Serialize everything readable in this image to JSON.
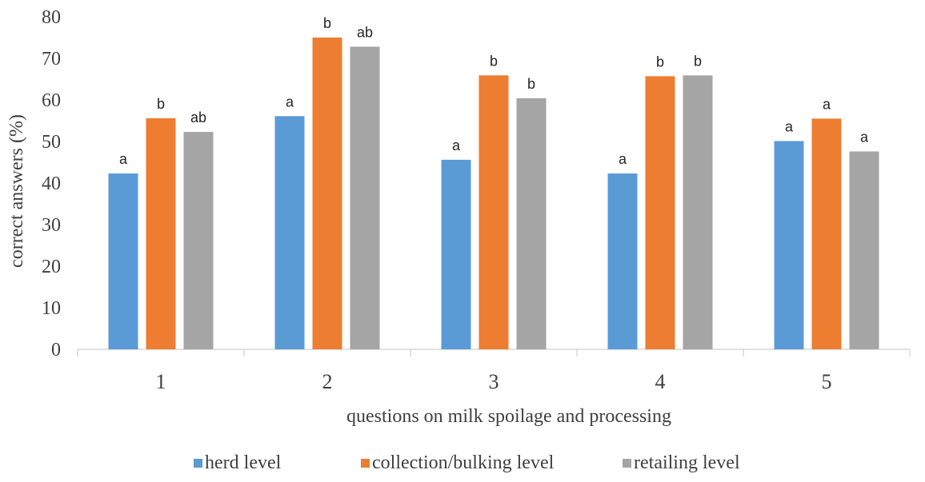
{
  "chart_data": {
    "type": "bar",
    "categories": [
      "1",
      "2",
      "3",
      "4",
      "5"
    ],
    "series": [
      {
        "name": "herd level",
        "color": "#5B9BD5",
        "values": [
          42.3,
          56.1,
          45.6,
          42.3,
          50.1
        ],
        "labels": [
          "a",
          "a",
          "a",
          "a",
          "a"
        ]
      },
      {
        "name": "collection/bulking level",
        "color": "#ED7D31",
        "values": [
          55.6,
          75.0,
          65.9,
          65.7,
          55.5
        ],
        "labels": [
          "b",
          "b",
          "b",
          "b",
          "a"
        ]
      },
      {
        "name": "retailing level",
        "color": "#A5A5A5",
        "values": [
          52.3,
          72.8,
          60.4,
          65.9,
          47.6
        ],
        "labels": [
          "ab",
          "ab",
          "b",
          "b",
          "a"
        ]
      }
    ],
    "xlabel": "questions on milk spoilage and processing",
    "ylabel": "correct answers (%)",
    "ylim": [
      0,
      80
    ],
    "yticks": [
      "0",
      "10",
      "20",
      "30",
      "40",
      "50",
      "60",
      "70",
      "80"
    ],
    "grid": false,
    "legend_position": "bottom"
  }
}
